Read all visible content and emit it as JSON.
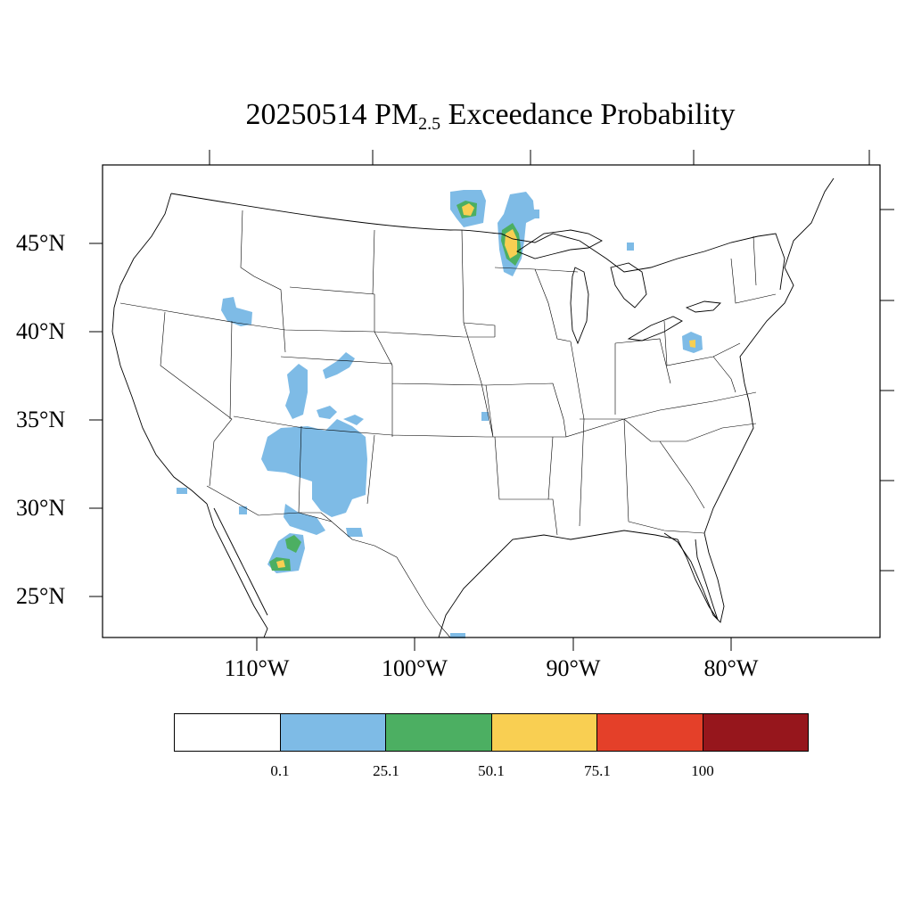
{
  "title": {
    "prefix": "20250514 PM",
    "subscript": "2.5",
    "suffix": " Exceedance Probability"
  },
  "map": {
    "lat_labels": [
      "45°N",
      "40°N",
      "35°N",
      "30°N",
      "25°N"
    ],
    "lon_labels": [
      "110°W",
      "100°W",
      "90°W",
      "80°W"
    ]
  },
  "legend": {
    "colors": [
      "#ffffff",
      "#7ebbe6",
      "#4caf62",
      "#f9cf52",
      "#e44029",
      "#96161c"
    ],
    "ticks": [
      "0.1",
      "25.1",
      "50.1",
      "75.1",
      "100"
    ]
  },
  "colors": {
    "low": "#7ebbe6",
    "mid": "#4caf62",
    "high": "#f9cf52"
  }
}
